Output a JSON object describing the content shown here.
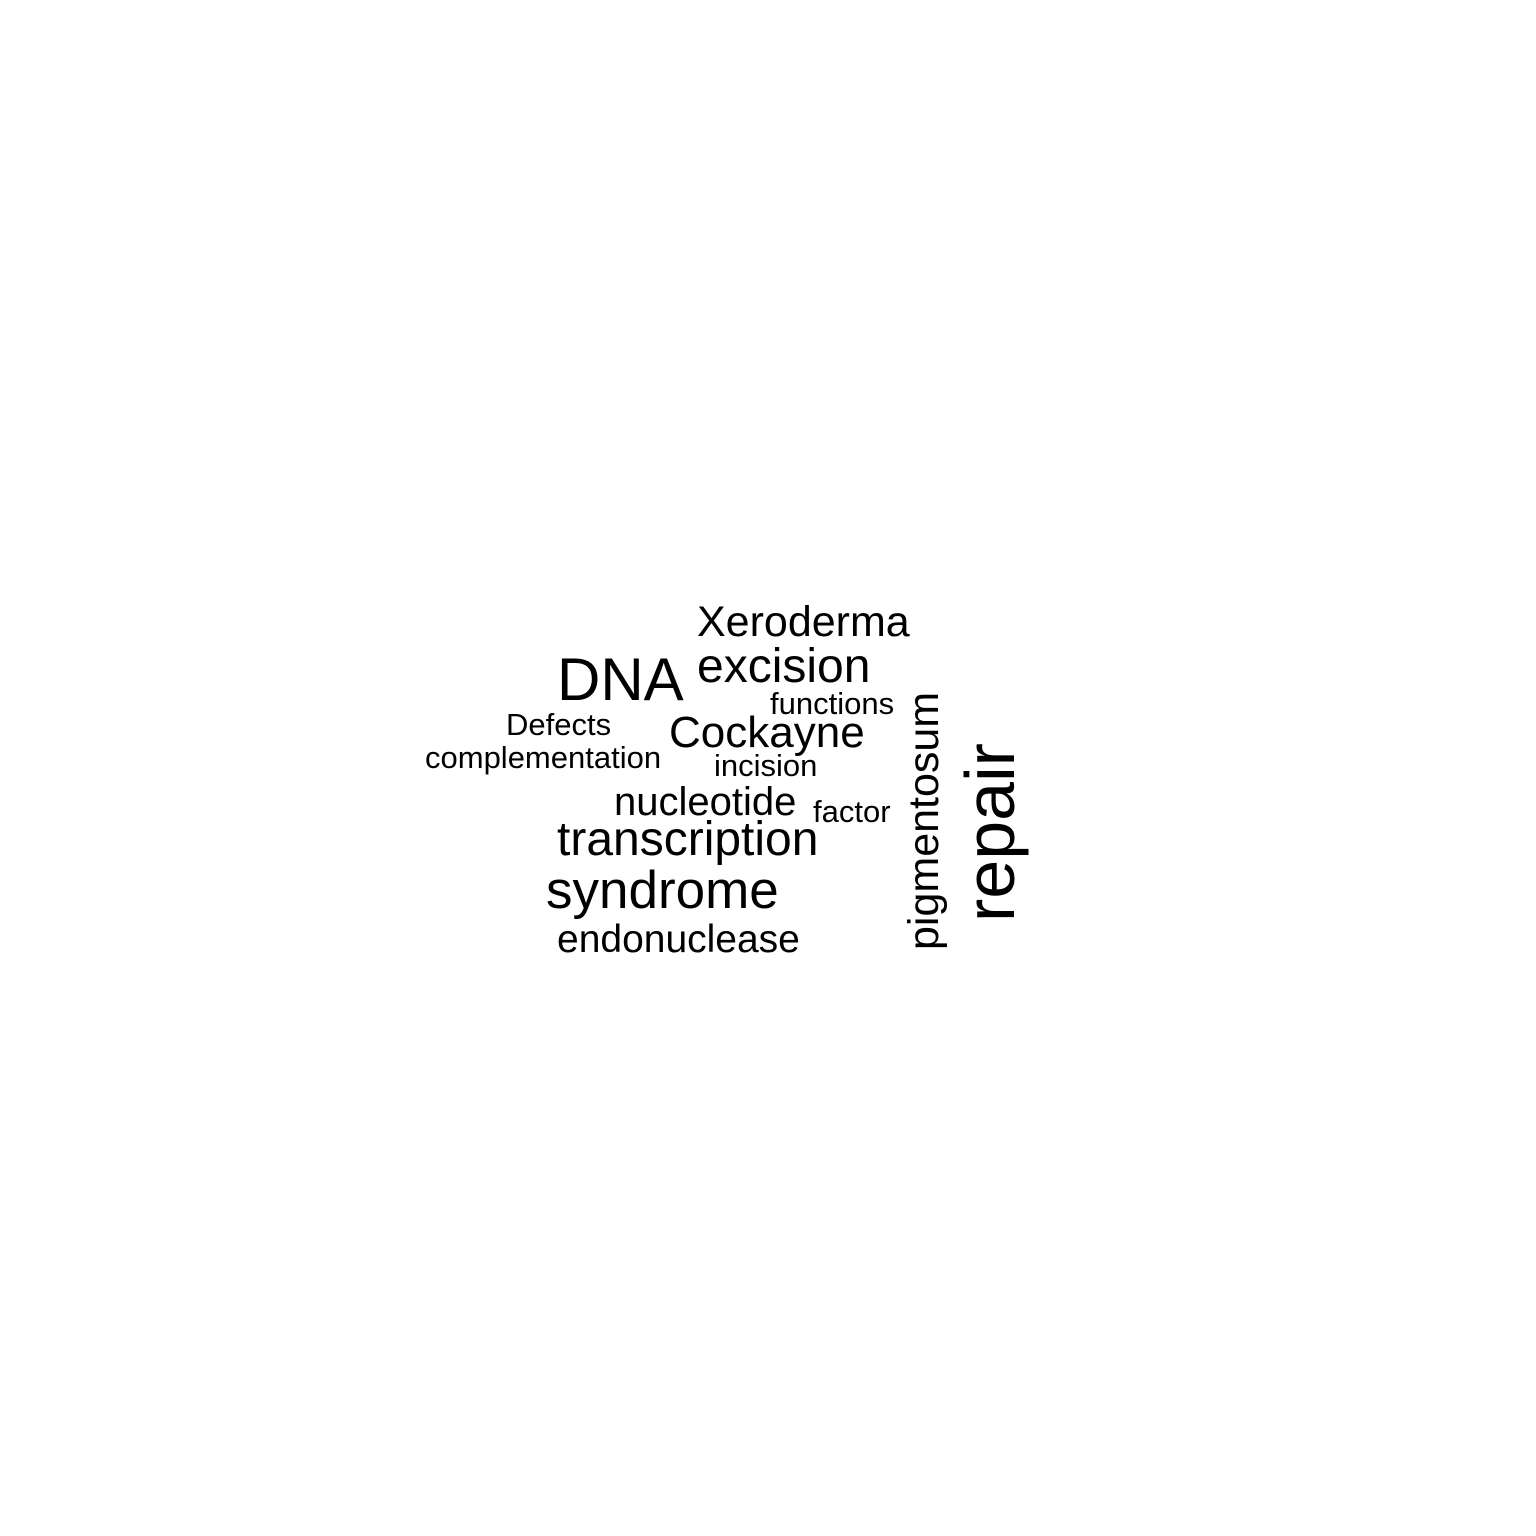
{
  "word_cloud": {
    "text_color": "#000000",
    "background_color": "#ffffff",
    "words": [
      {
        "text": "Xeroderma",
        "orientation": "horizontal"
      },
      {
        "text": "DNA",
        "orientation": "horizontal"
      },
      {
        "text": "excision",
        "orientation": "horizontal"
      },
      {
        "text": "functions",
        "orientation": "horizontal"
      },
      {
        "text": "Defects",
        "orientation": "horizontal"
      },
      {
        "text": "Cockayne",
        "orientation": "horizontal"
      },
      {
        "text": "complementation",
        "orientation": "horizontal"
      },
      {
        "text": "incision",
        "orientation": "horizontal"
      },
      {
        "text": "nucleotide",
        "orientation": "horizontal"
      },
      {
        "text": "factor",
        "orientation": "horizontal"
      },
      {
        "text": "transcription",
        "orientation": "horizontal"
      },
      {
        "text": "syndrome",
        "orientation": "horizontal"
      },
      {
        "text": "endonuclease",
        "orientation": "horizontal"
      },
      {
        "text": "pigmentosum",
        "orientation": "vertical"
      },
      {
        "text": "repair",
        "orientation": "vertical"
      }
    ]
  }
}
